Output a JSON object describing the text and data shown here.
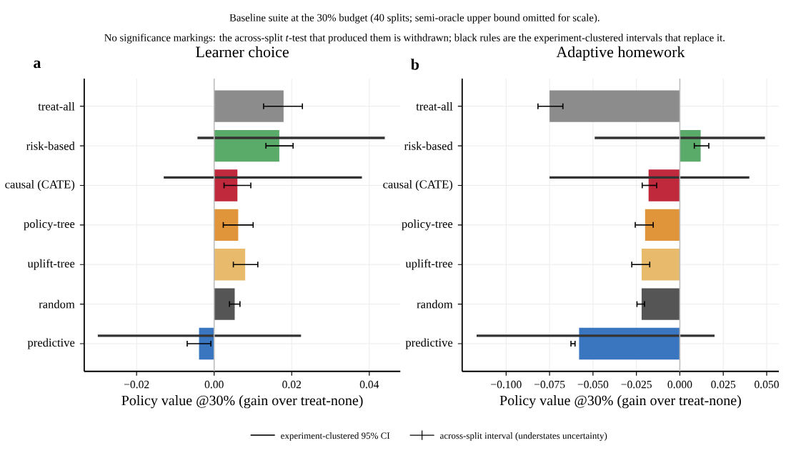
{
  "chart_data": [
    {
      "type": "bar",
      "orientation": "horizontal",
      "title": "Learner choice",
      "xlabel": "Policy value @30% (gain over treat-none)",
      "annotations": [
        "Baseline suite at the 30% budget (40 splits; semi-oracle upper bound omitted for scale).",
        "No significance markings: the across-split *t*-test that produced them is withdrawn; black rules are the experiment-clustered intervals that replace it.",
        "a"
      ],
      "categories": [
        "treat-all",
        "risk-based",
        "causal (CATE)",
        "policy-tree",
        "uplift-tree",
        "random",
        "predictive"
      ],
      "series": [
        {
          "colors": [
            "#8c8c8c",
            "#5aaa6a",
            "#c0283c",
            "#e0953a",
            "#e8bb6c",
            "#555555",
            "#3a75c0"
          ],
          "values": [
            0.0179,
            0.0168,
            0.006,
            0.0062,
            0.008,
            0.0053,
            -0.0039
          ],
          "errors": [
            [
              0.0126,
              0.0229
            ],
            [
              0.0132,
              0.0205
            ],
            [
              0.0024,
              0.0096
            ],
            [
              0.0022,
              0.0102
            ],
            [
              0.0048,
              0.0114
            ],
            [
              0.0038,
              0.0068
            ],
            [
              -0.0071,
              -0.0007
            ]
          ]
        },
        {
          "color": "#333333",
          "base": [
            null,
            -0.0043,
            -0.013,
            null,
            null,
            null,
            -0.03
          ],
          "values": [
            null,
            0.0483,
            0.0511,
            null,
            null,
            null,
            0.0524
          ]
        }
      ],
      "xlim": [
        -0.0335,
        0.048
      ],
      "xticks": [
        {
          "value": -0.02,
          "label": "−0.02"
        },
        {
          "value": 0,
          "label": "0.00"
        },
        {
          "value": 0.02,
          "label": "0.02"
        },
        {
          "value": 0.04,
          "label": "0.04"
        }
      ],
      "grid": true,
      "ref_lines": [
        {
          "axis": "x",
          "value": 0,
          "color": "#bdbdbd"
        }
      ]
    },
    {
      "type": "bar",
      "orientation": "horizontal",
      "title": "Adaptive homework",
      "xlabel": "Policy value @30% (gain over treat-none)",
      "annotations": [
        "across-split interval (understates uncertainty)",
        "b"
      ],
      "categories": [
        "treat-all",
        "risk-based",
        "causal (CATE)",
        "policy-tree",
        "uplift-tree",
        "random",
        "predictive"
      ],
      "series": [
        {
          "colors": [
            "#8c8c8c",
            "#5aaa6a",
            "#c0283c",
            "#e0953a",
            "#e8bb6c",
            "#555555",
            "#3a75c0"
          ],
          "values": [
            -0.075,
            0.012,
            -0.018,
            -0.02,
            -0.022,
            -0.022,
            -0.058
          ],
          "errors": [
            [
              -0.082,
              -0.067
            ],
            [
              0.008,
              0.017
            ],
            [
              -0.022,
              -0.013
            ],
            [
              -0.026,
              -0.015
            ],
            [
              -0.028,
              -0.017
            ],
            [
              -0.025,
              -0.02
            ],
            [
              -0.063,
              -0.06
            ]
          ]
        },
        {
          "name": "experiment-clustered 95% CI",
          "color": "#333333",
          "base": [
            null,
            -0.049,
            -0.075,
            null,
            null,
            null,
            -0.117
          ],
          "values": [
            null,
            0.098,
            0.115,
            null,
            null,
            null,
            0.137
          ]
        }
      ],
      "xlim": [
        -0.1253,
        0.057
      ],
      "xticks": [
        {
          "value": -0.1,
          "label": "−0.100"
        },
        {
          "value": -0.075,
          "label": "−0.075"
        },
        {
          "value": -0.05,
          "label": "−0.050"
        },
        {
          "value": -0.025,
          "label": "−0.025"
        },
        {
          "value": 0,
          "label": "0.000"
        },
        {
          "value": 0.025,
          "label": "0.025"
        },
        {
          "value": 0.05,
          "label": "0.050"
        }
      ],
      "grid": true,
      "legend": "bottom",
      "ref_lines": [
        {
          "axis": "x",
          "value": 0,
          "color": "#bdbdbd"
        }
      ]
    }
  ]
}
